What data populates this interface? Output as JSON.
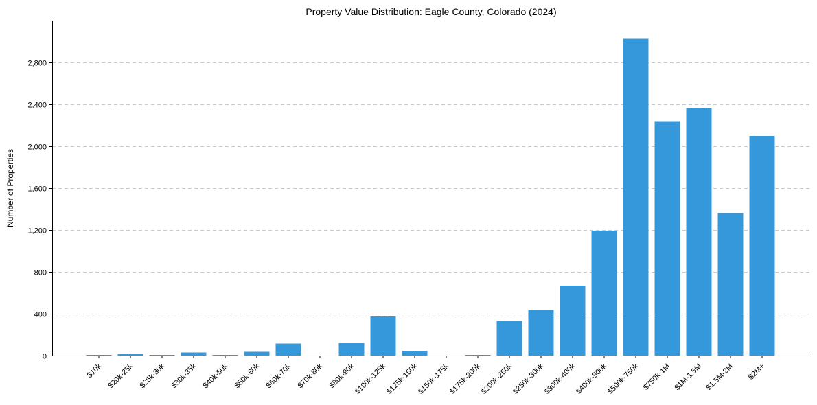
{
  "chart_data": {
    "type": "bar",
    "title": "Property Value Distribution: Eagle County, Colorado (2024)",
    "xlabel": "",
    "ylabel": "Number of Properties",
    "ylim": [
      0,
      3200
    ],
    "yticks": [
      0,
      400,
      800,
      1200,
      1600,
      2000,
      2400,
      2800
    ],
    "ytick_labels": [
      "0",
      "400",
      "800",
      "1,200",
      "1,600",
      "2,000",
      "2,400",
      "2,800"
    ],
    "grid": "y-dashed",
    "bar_color": "#3498db",
    "categories": [
      "$10k",
      "$20k-25k",
      "$25k-30k",
      "$30k-35k",
      "$40k-50k",
      "$50k-60k",
      "$60k-70k",
      "$70k-80k",
      "$80k-90k",
      "$100k-125k",
      "$125k-150k",
      "$150k-175k",
      "$175k-200k",
      "$200k-250k",
      "$250k-300k",
      "$300k-400k",
      "$400k-500k",
      "$500k-750k",
      "$750k-1M",
      "$1M-1.5M",
      "$1.5M-2M",
      "$2M+"
    ],
    "values": [
      5,
      15,
      5,
      30,
      5,
      35,
      115,
      0,
      120,
      375,
      45,
      0,
      5,
      330,
      435,
      670,
      1195,
      3025,
      2240,
      2365,
      1360,
      2100
    ]
  }
}
